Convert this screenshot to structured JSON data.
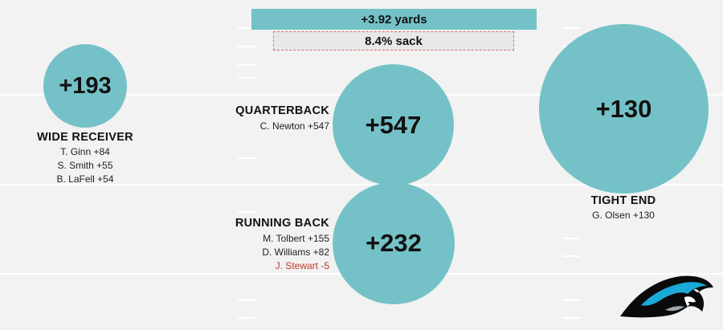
{
  "summary": {
    "yards_label": "+3.92 yards",
    "sack_label": "8.4% sack"
  },
  "positions": {
    "wide_receiver": {
      "title": "WIDE RECEIVER",
      "total": "+193",
      "players": [
        "T. Ginn +84",
        "S. Smith +55",
        "B. LaFell +54"
      ]
    },
    "quarterback": {
      "title": "QUARTERBACK",
      "total": "+547",
      "players": [
        "C. Newton +547"
      ]
    },
    "running_back": {
      "title": "RUNNING BACK",
      "total": "+232",
      "players": [
        "M. Tolbert +155",
        "D. Williams +82",
        "J. Stewart -5"
      ]
    },
    "tight_end": {
      "title": "TIGHT END",
      "total": "+130",
      "players": [
        "G. Olsen +130"
      ]
    }
  },
  "colors": {
    "circle": "#74c2c7",
    "negative": "#c0392b"
  },
  "logo": {
    "icon": "panther-logo-icon"
  }
}
